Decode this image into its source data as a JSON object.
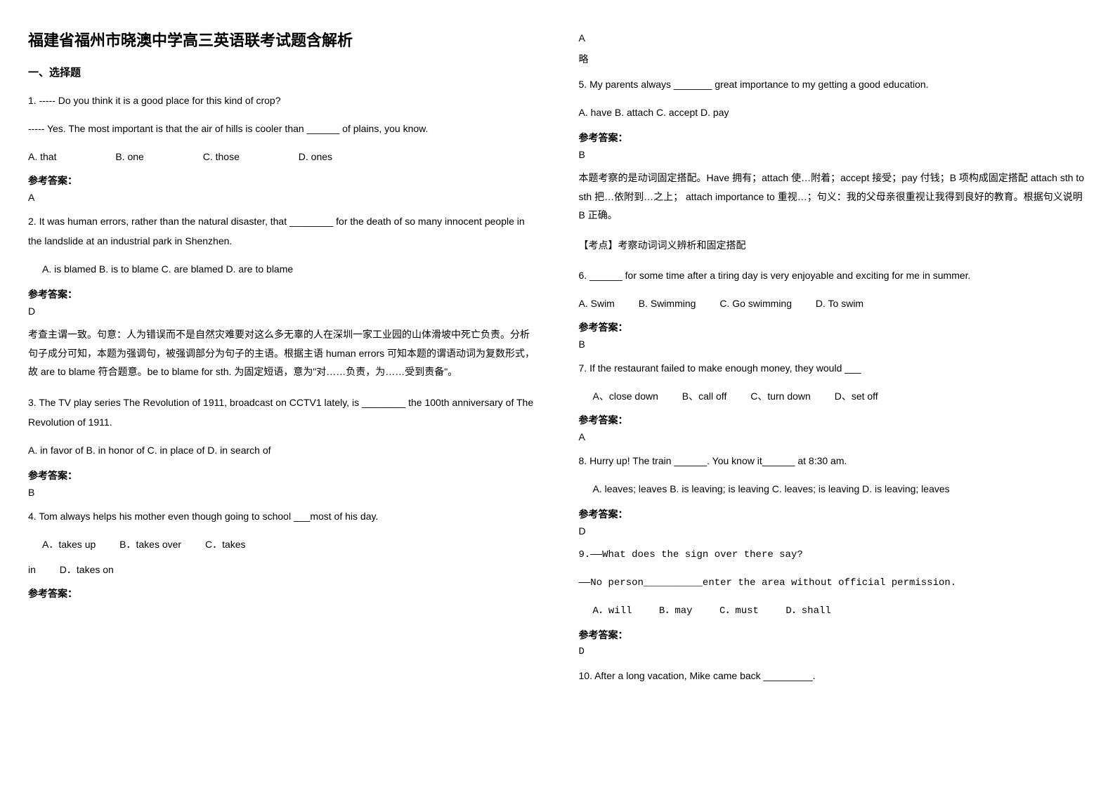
{
  "title": "福建省福州市晓澳中学高三英语联考试题含解析",
  "sectionHeading": "一、选择题",
  "column1": {
    "q1": {
      "line1": "1. ----- Do you think it is a good place for this kind of crop?",
      "line2": "----- Yes. The most important is that the air of hills is cooler than ______ of plains, you know.",
      "optA": "A. that",
      "optB": "B. one",
      "optC": "C. those",
      "optD": "D. ones",
      "answerLabel": "参考答案：",
      "answerValue": "A"
    },
    "q2": {
      "line1": "2. It was human errors, rather than the natural disaster, that ________ for the death of so many innocent people in the landslide at an industrial park in Shenzhen.",
      "opts": "A. is blamed  B. is to blame  C. are blamed  D. are to blame",
      "answerLabel": "参考答案：",
      "answerValue": "D",
      "explanation": "考查主谓一致。句意：人为错误而不是自然灾难要对这么多无辜的人在深圳一家工业园的山体滑坡中死亡负责。分析句子成分可知，本题为强调句，被强调部分为句子的主语。根据主语 human errors 可知本题的谓语动词为复数形式，故 are to blame 符合题意。be to blame for sth. 为固定短语，意为\"对……负责，为……受到责备\"。"
    },
    "q3": {
      "line1": "3. The TV play series The Revolution of 1911, broadcast on CCTV1 lately, is ________ the 100th anniversary of The Revolution of 1911.",
      "opts": "A. in favor of   B. in honor of   C. in place of   D. in search of",
      "answerLabel": "参考答案：",
      "answerValue": "B"
    },
    "q4": {
      "line1": "4. Tom always helps his mother even though going to school ___most of his day.",
      "optA": "A．takes up",
      "optB": "B．takes over",
      "optC": "C．takes",
      "line2": "in",
      "optD": "D．takes on",
      "answerLabel": "参考答案："
    }
  },
  "column2": {
    "q4answer": "A",
    "q4exp": "略",
    "q5": {
      "line1": "5. My parents always _______ great importance to my getting a good education.",
      "opts": "A. have   B. attach  C. accept  D. pay",
      "answerLabel": "参考答案：",
      "answerValue": "B",
      "explanation": "本题考察的是动词固定搭配。Have 拥有；attach 使…附着；accept 接受；pay 付钱；B 项构成固定搭配 attach  sth to sth 把…依附到…之上；  attach importance to 重视…；句义：我的父母亲很重视让我得到良好的教育。根据句义说明 B 正确。",
      "kaoDian": "【考点】考察动词词义辨析和固定搭配"
    },
    "q6": {
      "line1": " 6. ______ for some time after a tiring day is very enjoyable and exciting for me in summer.",
      "optA": "A. Swim",
      "optB": "B. Swimming",
      "optC": "C. Go swimming",
      "optD": "D. To swim",
      "answerLabel": "参考答案：",
      "answerValue": "B"
    },
    "q7": {
      "line1": "7. If the restaurant failed to make enough money, they would ___",
      "optA": "A、close down",
      "optB": "B、call off",
      "optC": "C、turn down",
      "optD": "D、set off",
      "answerLabel": "参考答案：",
      "answerValue": "A"
    },
    "q8": {
      "line1": "8. Hurry up!  The train ______. You know it______ at 8:30 am.",
      "opts": "A. leaves; leaves   B. is leaving; is leaving  C. leaves; is leaving    D. is leaving; leaves",
      "answerLabel": "参考答案：",
      "answerValue": "D"
    },
    "q9": {
      "line1": " 9.——What does the sign over there say?",
      "line2": "  ——No person__________enter the area without official permission.",
      "optA": "A．will",
      "optB": "B．may",
      "optC": "C．must",
      "optD": "D．shall",
      "answerLabel": "参考答案：",
      "answerValue": "D"
    },
    "q10": {
      "line1": "10. After a long vacation, Mike came back _________."
    }
  }
}
